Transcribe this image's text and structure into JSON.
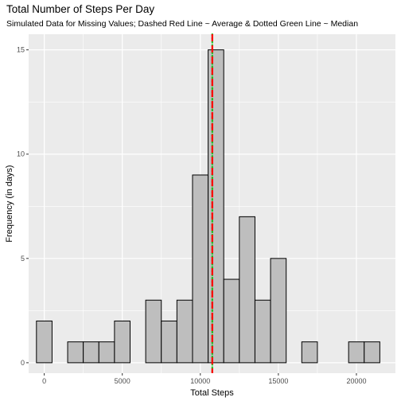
{
  "chart_data": {
    "type": "bar",
    "title": "Total Number of Steps Per Day",
    "subtitle": "Simulated Data for Missing Values; Dashed Red Line ~ Average & Dotted Green Line ~ Median",
    "xlabel": "Total Steps",
    "ylabel": "Frequency (in days)",
    "xlim": [
      -1000,
      22500
    ],
    "ylim": [
      -0.5,
      15.75
    ],
    "x_ticks": [
      0,
      5000,
      10000,
      15000,
      20000
    ],
    "x_tick_labels": [
      "0",
      "5000",
      "10000",
      "15000",
      "20000"
    ],
    "y_ticks": [
      0,
      5,
      10,
      15
    ],
    "y_tick_labels": [
      "0",
      "5",
      "10",
      "15"
    ],
    "bin_width": 1000,
    "bins": [
      {
        "center": 0,
        "count": 2
      },
      {
        "center": 2000,
        "count": 1
      },
      {
        "center": 3000,
        "count": 1
      },
      {
        "center": 4000,
        "count": 1
      },
      {
        "center": 5000,
        "count": 2
      },
      {
        "center": 7000,
        "count": 3
      },
      {
        "center": 8000,
        "count": 2
      },
      {
        "center": 9000,
        "count": 3
      },
      {
        "center": 10000,
        "count": 9
      },
      {
        "center": 11000,
        "count": 15
      },
      {
        "center": 12000,
        "count": 4
      },
      {
        "center": 13000,
        "count": 7
      },
      {
        "center": 14000,
        "count": 3
      },
      {
        "center": 15000,
        "count": 5
      },
      {
        "center": 17000,
        "count": 1
      },
      {
        "center": 20000,
        "count": 1
      },
      {
        "center": 21000,
        "count": 1
      }
    ],
    "mean": 10766,
    "median": 10766,
    "mean_line_color": "#ff0000",
    "median_line_color": "#00bb00",
    "bar_fill": "#bebebe",
    "bar_stroke": "#000000",
    "panel_bg": "#ebebeb",
    "grid": true
  }
}
